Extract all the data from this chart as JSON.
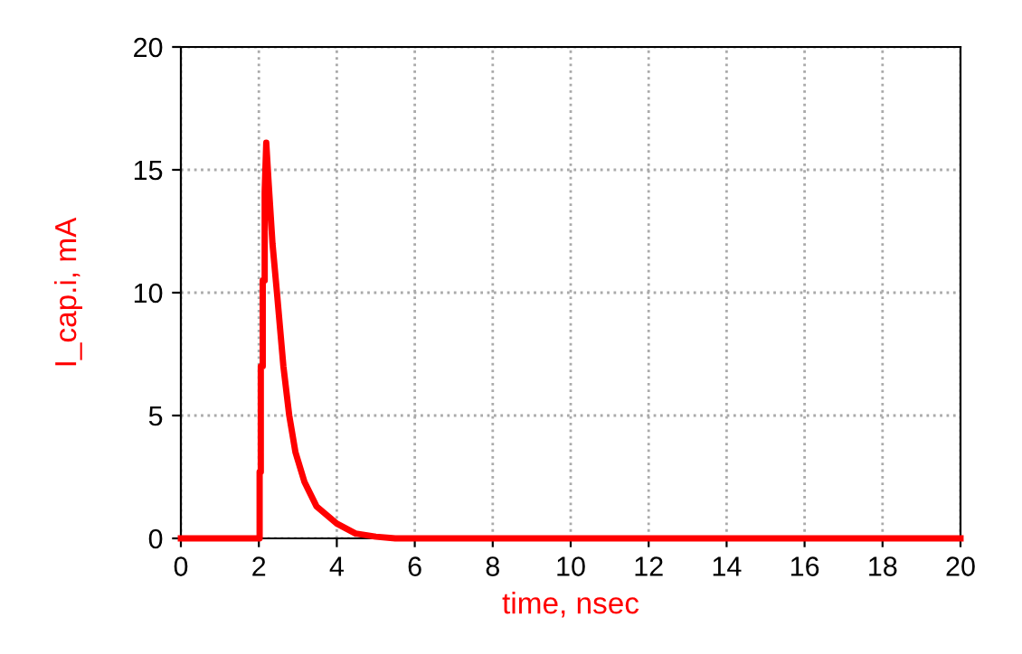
{
  "chart_data": {
    "type": "line",
    "xlabel": "time, nsec",
    "ylabel": "I_cap.i, mA",
    "x": [
      0,
      2.0,
      2.02,
      2.02,
      2.05,
      2.05,
      2.1,
      2.1,
      2.15,
      2.15,
      2.19,
      2.25,
      2.35,
      2.47,
      2.63,
      2.78,
      2.94,
      3.17,
      3.48,
      4.0,
      4.48,
      5.0,
      5.5,
      20
    ],
    "series": [
      {
        "color": "#ff0000",
        "values": [
          0,
          0,
          0,
          2.7,
          2.7,
          7.0,
          7.0,
          10.5,
          10.5,
          14.1,
          16.1,
          14.5,
          12.0,
          9.9,
          7.0,
          5.0,
          3.5,
          2.3,
          1.3,
          0.6,
          0.2,
          0.07,
          0,
          0
        ]
      }
    ],
    "xlim": [
      0,
      20
    ],
    "ylim": [
      0,
      20
    ],
    "xticks": [
      0,
      2,
      4,
      6,
      8,
      10,
      12,
      14,
      16,
      18,
      20
    ],
    "yticks": [
      0,
      5,
      10,
      15,
      20
    ],
    "grid": true,
    "line_style": "solid",
    "marker": "none"
  }
}
